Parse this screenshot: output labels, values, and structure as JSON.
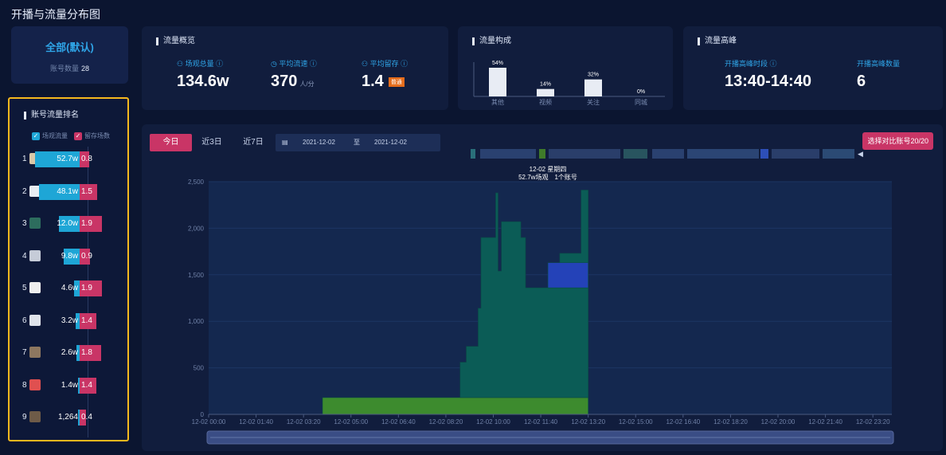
{
  "page": {
    "title": "开播与流量分布图"
  },
  "account_summary": {
    "all_label": "全部(默认)",
    "count_label": "账号数量",
    "count_value": "28"
  },
  "ranking": {
    "title": "账号流量排名",
    "legend": [
      {
        "label": "场观流量",
        "color": "#1ea6d6"
      },
      {
        "label": "留存场数",
        "color": "#c93566"
      }
    ],
    "rows": [
      {
        "rank": "1",
        "views": "52.7w",
        "views_frac": 1.0,
        "sessions": "0.8",
        "sessions_frac": 0.42
      },
      {
        "rank": "2",
        "views": "48.1w",
        "views_frac": 0.91,
        "sessions": "1.5",
        "sessions_frac": 0.79
      },
      {
        "rank": "3",
        "views": "12.0w",
        "views_frac": 0.47,
        "sessions": "1.9",
        "sessions_frac": 1.0
      },
      {
        "rank": "4",
        "views": "9.8w",
        "views_frac": 0.35,
        "sessions": "0.9",
        "sessions_frac": 0.47
      },
      {
        "rank": "5",
        "views": "4.6w",
        "views_frac": 0.12,
        "sessions": "1.9",
        "sessions_frac": 1.0
      },
      {
        "rank": "6",
        "views": "3.2w",
        "views_frac": 0.09,
        "sessions": "1.4",
        "sessions_frac": 0.74
      },
      {
        "rank": "7",
        "views": "2.6w",
        "views_frac": 0.07,
        "sessions": "1.8",
        "sessions_frac": 0.95
      },
      {
        "rank": "8",
        "views": "1.4w",
        "views_frac": 0.04,
        "sessions": "1.4",
        "sessions_frac": 0.74
      },
      {
        "rank": "9",
        "views": "1,264",
        "views_frac": 0.0,
        "sessions": "0.4",
        "sessions_frac": 0.21
      }
    ]
  },
  "overview": {
    "title": "流量概览",
    "stats": [
      {
        "label": "场观总量",
        "value": "134.6w",
        "unit": ""
      },
      {
        "label": "平均流速",
        "value": "370",
        "unit": "人/分"
      },
      {
        "label": "平均留存",
        "value": "1.4",
        "unit": "",
        "badge": "普通"
      }
    ]
  },
  "composition": {
    "title": "流量构成",
    "chart_data": {
      "type": "bar",
      "categories": [
        "其他",
        "视频",
        "关注",
        "同城"
      ],
      "values": [
        54,
        14,
        32,
        0
      ],
      "value_labels": [
        "54%",
        "14%",
        "32%",
        "0%"
      ],
      "ylim": [
        0,
        60
      ]
    }
  },
  "peak": {
    "title": "流量高峰",
    "stats": [
      {
        "label": "开播高峰时段",
        "value": "13:40-14:40"
      },
      {
        "label": "开播高峰数量",
        "value": "6"
      }
    ]
  },
  "filters": {
    "tabs": [
      {
        "label": "今日",
        "active": true
      },
      {
        "label": "近3日",
        "active": false
      },
      {
        "label": "近7日",
        "active": false
      }
    ],
    "date_from": "2021-12-02",
    "date_sep": "至",
    "date_to": "2021-12-02",
    "compare_button": "选择对比账号20/20"
  },
  "tooltip": {
    "line1": "12-02 星期四",
    "line2": "52.7w场观　1个账号"
  },
  "main_chart": {
    "chart_data": {
      "type": "area",
      "x_tick_labels": [
        "12-02 00:00",
        "12-02 01:40",
        "12-02 03:20",
        "12-02 05:00",
        "12-02 06:40",
        "12-02 08:20",
        "12-02 10:00",
        "12-02 11:40",
        "12-02 13:20",
        "12-02 15:00",
        "12-02 16:40",
        "12-02 18:20",
        "12-02 20:00",
        "12-02 21:40",
        "12-02 23:20"
      ],
      "y_ticks": [
        0,
        500,
        1000,
        1500,
        2000,
        2500
      ],
      "y_tick_labels": [
        "0",
        "500",
        "1,000",
        "1,500",
        "2,000",
        "2,500"
      ],
      "ylim": [
        0,
        2500
      ],
      "x_range_minutes": [
        0,
        1440
      ],
      "series": [
        {
          "color": "#3d8b2e",
          "points": [
            [
              240,
              0
            ],
            [
              240,
              180
            ],
            [
              800,
              180
            ],
            [
              800,
              0
            ]
          ]
        },
        {
          "color": "#0b5c56",
          "points": [
            [
              530,
              180
            ],
            [
              530,
              560
            ],
            [
              543,
              560
            ],
            [
              543,
              730
            ],
            [
              568,
              730
            ],
            [
              568,
              1140
            ],
            [
              574,
              1140
            ],
            [
              574,
              1900
            ],
            [
              605,
              1900
            ],
            [
              605,
              2380
            ],
            [
              610,
              2380
            ],
            [
              610,
              1540
            ],
            [
              617,
              1540
            ],
            [
              617,
              2070
            ],
            [
              658,
              2070
            ],
            [
              658,
              1900
            ],
            [
              668,
              1900
            ],
            [
              668,
              1360
            ],
            [
              800,
              1360
            ],
            [
              800,
              180
            ]
          ]
        },
        {
          "color": "#0b5c56",
          "points": [
            [
              740,
              1360
            ],
            [
              740,
              1730
            ],
            [
              785,
              1730
            ],
            [
              785,
              2410
            ],
            [
              800,
              2410
            ],
            [
              800,
              1360
            ]
          ]
        },
        {
          "color": "#2442b8",
          "points": [
            [
              715,
              1360
            ],
            [
              715,
              1630
            ],
            [
              800,
              1630
            ],
            [
              800,
              1360
            ]
          ]
        }
      ]
    }
  }
}
